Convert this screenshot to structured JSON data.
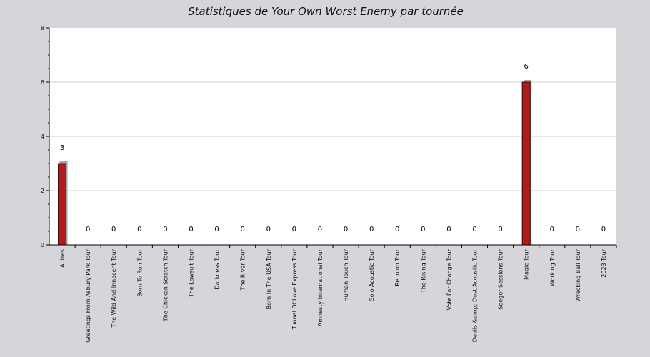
{
  "chart_data": {
    "type": "bar",
    "title": "Statistiques de Your Own Worst Enemy par tournée",
    "xlabel": "",
    "ylabel": "",
    "ylim": [
      0,
      8
    ],
    "yticks": [
      0,
      2,
      4,
      6,
      8
    ],
    "grid": true,
    "categories": [
      "Autres",
      "Greetings From Asbury Park Tour",
      "The Wild And Innocent Tour",
      "Born To Run Tour",
      "The Chicken Scratch Tour",
      "The Lawsuit Tour",
      "Darkness Tour",
      "The River Tour",
      "Born In The USA Tour",
      "Tunnel Of Love Express Tour",
      "Amnesty International Tour",
      "Human Touch Tour",
      "Solo Acoustic Tour",
      "Reunion Tour",
      "The Rising Tour",
      "Vote For Change Tour",
      "Devils &amp; Dust Acoustic Tour",
      "Seeger Sessions Tour",
      "Magic Tour",
      "Working Tour",
      "Wrecking Ball Tour",
      "2023 Tour"
    ],
    "values": [
      3,
      0,
      0,
      0,
      0,
      0,
      0,
      0,
      0,
      0,
      0,
      0,
      0,
      0,
      0,
      0,
      0,
      0,
      6,
      0,
      0,
      0
    ],
    "colors": {
      "bar": "#b01c1c",
      "bar_shadow": "#a7a7a7",
      "plot_bg": "#ffffff",
      "page_bg": "#d6d5da",
      "grid": "#cfcfcf"
    }
  }
}
